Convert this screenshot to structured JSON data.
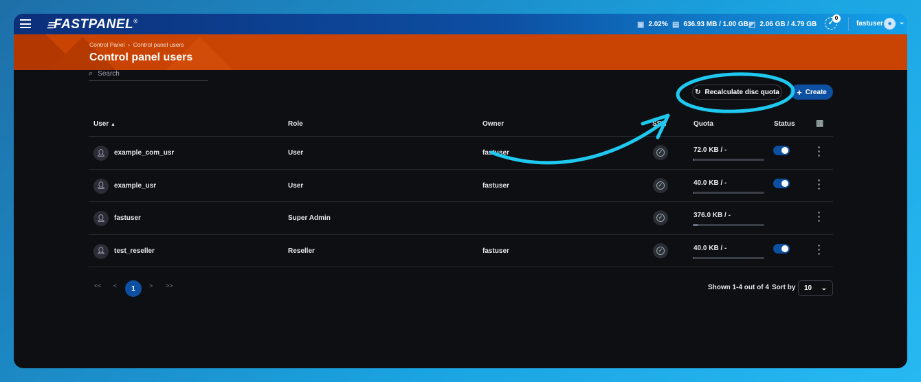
{
  "app": {
    "logo": "FASTPANEL",
    "cpu": "2.02%",
    "ram": "636.93 MB / 1.00 GB",
    "disk": "2.06 GB / 4.79 GB",
    "tasks_badge": "0",
    "user": "fastuser"
  },
  "breadcrumb": [
    "Control Panel",
    "Control panel users"
  ],
  "page_title": "Control panel users",
  "search": {
    "placeholder": "Search"
  },
  "buttons": {
    "recalc": "Recalculate disc quota",
    "create": "Create"
  },
  "columns": {
    "user": "User",
    "role": "Role",
    "owner": "Owner",
    "ssh": "SSH",
    "quota": "Quota",
    "status": "Status"
  },
  "rows": [
    {
      "user": "example_com_usr",
      "role": "User",
      "owner": "fastuser",
      "quota": "72.0 KB / -",
      "status": true
    },
    {
      "user": "example_usr",
      "role": "User",
      "owner": "fastuser",
      "quota": "40.0 KB / -",
      "status": true
    },
    {
      "user": "fastuser",
      "role": "Super Admin",
      "owner": "",
      "quota": "376.0 KB / -",
      "status": null
    },
    {
      "user": "test_reseller",
      "role": "Reseller",
      "owner": "fastuser",
      "quota": "40.0 KB / -",
      "status": true
    }
  ],
  "pagination": {
    "first": "<<",
    "prev": "<",
    "current": "1",
    "next": ">",
    "last": ">>"
  },
  "footer": {
    "shown": "Shown 1-4 out of 4",
    "sort_label": "Sort by",
    "sort_value": "10"
  },
  "colors": {
    "accent": "#0d4fa0",
    "banner": "#c94302",
    "annotation": "#1ec8ef"
  }
}
